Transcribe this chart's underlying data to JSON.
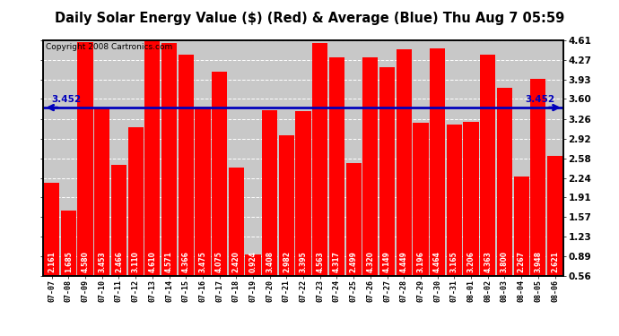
{
  "title": "Daily Solar Energy Value ($) (Red) & Average (Blue) Thu Aug 7 05:59",
  "copyright": "Copyright 2008 Cartronics.com",
  "average": 3.452,
  "categories": [
    "07-07",
    "07-08",
    "07-09",
    "07-10",
    "07-11",
    "07-12",
    "07-13",
    "07-14",
    "07-15",
    "07-16",
    "07-17",
    "07-18",
    "07-19",
    "07-20",
    "07-21",
    "07-22",
    "07-23",
    "07-24",
    "07-25",
    "07-26",
    "07-27",
    "07-28",
    "07-29",
    "07-30",
    "07-31",
    "08-01",
    "08-02",
    "08-03",
    "08-04",
    "08-05",
    "08-06"
  ],
  "values": [
    2.161,
    1.685,
    4.58,
    3.453,
    2.466,
    3.11,
    4.61,
    4.571,
    4.366,
    3.475,
    4.075,
    2.42,
    0.924,
    3.408,
    2.982,
    3.395,
    4.563,
    4.317,
    2.499,
    4.32,
    4.149,
    4.449,
    3.196,
    4.464,
    3.165,
    3.206,
    4.363,
    3.8,
    2.267,
    3.948,
    2.621
  ],
  "bar_color": "#ff0000",
  "avg_line_color": "#0000bb",
  "background_color": "#ffffff",
  "plot_bg_color": "#c8c8c8",
  "grid_color": "#ffffff",
  "ylim_min": 0.56,
  "ylim_max": 4.61,
  "yticks": [
    0.56,
    0.89,
    1.23,
    1.57,
    1.91,
    2.24,
    2.58,
    2.92,
    3.26,
    3.6,
    3.93,
    4.27,
    4.61
  ],
  "title_fontsize": 10.5,
  "copyright_fontsize": 6.5,
  "avg_label": "3.452",
  "avg_label_fontsize": 7.5,
  "value_label_fontsize": 5.5
}
